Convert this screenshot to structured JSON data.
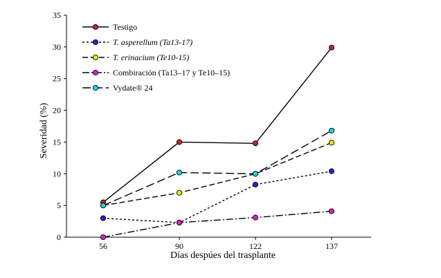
{
  "chart_data": {
    "type": "line",
    "title": "",
    "xlabel": "Días despúes del trasplante",
    "ylabel": "Severidad (%)",
    "ylim": [
      0,
      35
    ],
    "yticks": [
      "0",
      "5",
      "10",
      "15",
      "20",
      "25",
      "30",
      "35"
    ],
    "categories": [
      "56",
      "90",
      "122",
      "137"
    ],
    "grid": false,
    "legend_position": "top-left",
    "series": [
      {
        "name": "Testigo",
        "legend_parts": [
          {
            "text": "Testigo",
            "italic": false
          }
        ],
        "values": [
          5.5,
          15.0,
          14.8,
          29.9
        ],
        "color": "#000000",
        "marker_fill": "#c0272d",
        "dash": "none"
      },
      {
        "name": "T. asperellum (Ta13-17)",
        "legend_parts": [
          {
            "text": "T. asperellum (Ta13-17)",
            "italic": true
          }
        ],
        "values": [
          3.0,
          2.3,
          8.3,
          10.4
        ],
        "color": "#000000",
        "marker_fill": "#1f2bd6",
        "dash": "3,3"
      },
      {
        "name": "T. erinacium (Te10-15)",
        "legend_parts": [
          {
            "text": "T. erinacium (Te10-15)",
            "italic": true
          }
        ],
        "values": [
          5.0,
          7.0,
          10.0,
          14.9
        ],
        "color": "#000000",
        "marker_fill": "#f2e600",
        "dash": "8,4"
      },
      {
        "name": "Combiración (Ta13–17 y Te10–15)",
        "legend_parts": [
          {
            "text": "Combiración (Ta13–17 y Te10–15)",
            "italic": false
          }
        ],
        "values": [
          0.0,
          2.3,
          3.1,
          4.1
        ],
        "color": "#000000",
        "marker_fill": "#e01ec8",
        "dash": "10,3,2,3"
      },
      {
        "name": "Vydate® 24",
        "legend_parts": [
          {
            "text": "Vydate® 24",
            "italic": false
          }
        ],
        "values": [
          5.0,
          10.2,
          10.0,
          16.8
        ],
        "color": "#000000",
        "marker_fill": "#20d6d6",
        "dash": "12,5"
      }
    ]
  }
}
